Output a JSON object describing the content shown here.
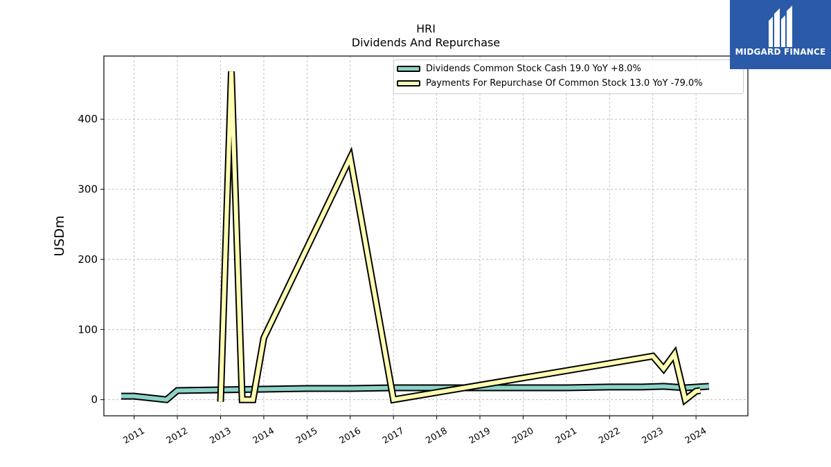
{
  "branding": {
    "logo_text": "MIDGARD FINANCE",
    "logo_color": "#2a5aa8"
  },
  "chart_data": {
    "type": "line",
    "title": "HRI",
    "subtitle": "Dividends And Repurchase",
    "ylabel": "USDm",
    "xlabel": "",
    "xlim": [
      2010.3,
      2025.2
    ],
    "ylim": [
      -23,
      490
    ],
    "yticks": [
      0,
      100,
      200,
      300,
      400
    ],
    "xticks": [
      "2011",
      "2012",
      "2013",
      "2014",
      "2015",
      "2016",
      "2017",
      "2018",
      "2019",
      "2020",
      "2021",
      "2022",
      "2023",
      "2024"
    ],
    "grid": true,
    "legend_position": "top-right",
    "series": [
      {
        "name": "Dividends Common Stock Cash  19.0 YoY +8.0%",
        "color": "#8dd3c7",
        "x": [
          2010.7,
          2011.0,
          2011.75,
          2012.0,
          2013.0,
          2014.0,
          2015.0,
          2016.0,
          2017.0,
          2018.0,
          2019.0,
          2020.0,
          2021.0,
          2022.0,
          2022.75,
          2023.25,
          2023.75,
          2024.3
        ],
        "y": [
          5,
          5,
          0,
          13,
          14,
          15,
          16,
          16,
          17,
          17,
          17,
          17,
          17,
          18,
          18,
          19,
          17,
          19
        ]
      },
      {
        "name": "Payments For Repurchase Of Common Stock  13.0 YoY -79.0%",
        "color": "#ffffb3",
        "x": [
          2013.0,
          2013.25,
          2013.5,
          2013.75,
          2014.0,
          2016.0,
          2017.0,
          2023.0,
          2023.25,
          2023.5,
          2023.75,
          2024.0,
          2024.1
        ],
        "y": [
          -3,
          468,
          0,
          0,
          88,
          345,
          0,
          62,
          44,
          65,
          0,
          12,
          13
        ]
      }
    ]
  }
}
